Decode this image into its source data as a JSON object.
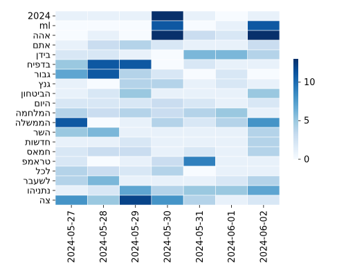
{
  "chart_data": {
    "type": "heatmap",
    "title": "",
    "xlabel": "",
    "ylabel": "",
    "x": [
      "2024-05-27",
      "2024-05-28",
      "2024-05-29",
      "2024-05-30",
      "2024-05-31",
      "2024-06-01",
      "2024-06-02"
    ],
    "y": [
      "2024",
      "ml",
      "אהה",
      "אתם",
      "בידן",
      "בדפיח",
      "גבור",
      "גנץ",
      "הביטחון",
      "היום",
      "המלחמה",
      "הממשלה",
      "השר",
      "חדשות",
      "חמאס",
      "טראמפ",
      "לכל",
      "לשעבר",
      "נתניהו",
      "צה"
    ],
    "values": [
      [
        1,
        1,
        1,
        13,
        1,
        0,
        1
      ],
      [
        0,
        0,
        0,
        11,
        0,
        1,
        11
      ],
      [
        0,
        1,
        0,
        13,
        3,
        2,
        13
      ],
      [
        1,
        3,
        4,
        2,
        1,
        1,
        3
      ],
      [
        2,
        2,
        1,
        0,
        6,
        6,
        4
      ],
      [
        5,
        11,
        11,
        0,
        2,
        1,
        1
      ],
      [
        7,
        11,
        4,
        2,
        0,
        2,
        0
      ],
      [
        1,
        0,
        4,
        4,
        1,
        2,
        1
      ],
      [
        1,
        2,
        5,
        1,
        1,
        1,
        5
      ],
      [
        2,
        2,
        2,
        3,
        2,
        1,
        2
      ],
      [
        4,
        3,
        4,
        3,
        4,
        5,
        1
      ],
      [
        11,
        0,
        1,
        4,
        2,
        4,
        8
      ],
      [
        5,
        6,
        1,
        1,
        1,
        1,
        4
      ],
      [
        1,
        1,
        2,
        1,
        1,
        1,
        4
      ],
      [
        2,
        3,
        3,
        1,
        2,
        1,
        4
      ],
      [
        2,
        0,
        1,
        3,
        9,
        1,
        1
      ],
      [
        4,
        3,
        2,
        4,
        0,
        1,
        1
      ],
      [
        4,
        6,
        1,
        1,
        1,
        2,
        4
      ],
      [
        1,
        2,
        7,
        4,
        5,
        5,
        7
      ],
      [
        8,
        5,
        12,
        8,
        4,
        1,
        2
      ]
    ],
    "colorbar": {
      "min": 0,
      "max": 13,
      "ticks": [
        0,
        5,
        10
      ]
    },
    "colormap": [
      "#f7fbff",
      "#deebf7",
      "#c6dbef",
      "#9ecae1",
      "#6baed6",
      "#4292c6",
      "#2171b5",
      "#08519c",
      "#08306b"
    ],
    "grid_line_color": "#ffffff"
  }
}
